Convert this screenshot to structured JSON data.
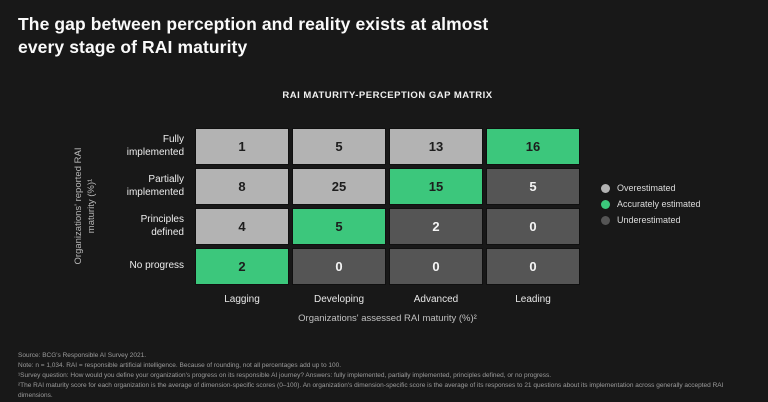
{
  "page": {
    "background": "#181818",
    "title_lines": [
      "The gap between perception and reality exists at almost",
      "every stage of RAI maturity"
    ]
  },
  "chart_data": {
    "type": "heatmap",
    "title": "RAI MATURITY-PERCEPTION GAP MATRIX",
    "xlabel": "Organizations' assessed RAI maturity (%)²",
    "ylabel": "Organizations' reported RAI maturity (%)¹",
    "x_categories": [
      "Lagging",
      "Developing",
      "Advanced",
      "Leading"
    ],
    "y_categories": [
      "Fully implemented",
      "Partially implemented",
      "Principles defined",
      "No progress"
    ],
    "values": [
      [
        1,
        5,
        13,
        16
      ],
      [
        8,
        25,
        15,
        5
      ],
      [
        4,
        5,
        2,
        0
      ],
      [
        2,
        0,
        0,
        0
      ]
    ],
    "cell_status": [
      [
        "overestimated",
        "overestimated",
        "overestimated",
        "accurate"
      ],
      [
        "overestimated",
        "overestimated",
        "accurate",
        "underestimated"
      ],
      [
        "overestimated",
        "accurate",
        "underestimated",
        "underestimated"
      ],
      [
        "accurate",
        "underestimated",
        "underestimated",
        "underestimated"
      ]
    ],
    "status_colors": {
      "overestimated": "#b3b3b3",
      "accurate": "#3cc77c",
      "underestimated": "#555555"
    },
    "legend": [
      {
        "label": "Overestimated",
        "status": "overestimated"
      },
      {
        "label": "Accurately estimated",
        "status": "accurate"
      },
      {
        "label": "Underestimated",
        "status": "underestimated"
      }
    ],
    "legend_position": "right",
    "grid": "off"
  },
  "footnotes": [
    "Source: BCG's Responsible AI Survey 2021.",
    "Note: n = 1,034. RAI = responsible artificial intelligence. Because of rounding, not all percentages add up to 100.",
    "¹Survey question: How would you define your organization's progress on its responsible AI journey? Answers: fully implemented, partially implemented, principles defined, or no progress.",
    "²The RAI maturity score for each organization is the average of dimension-specific scores (0–100). An organization's dimension-specific score is the average of its responses to 21 questions about its implementation across generally accepted RAI dimensions."
  ]
}
